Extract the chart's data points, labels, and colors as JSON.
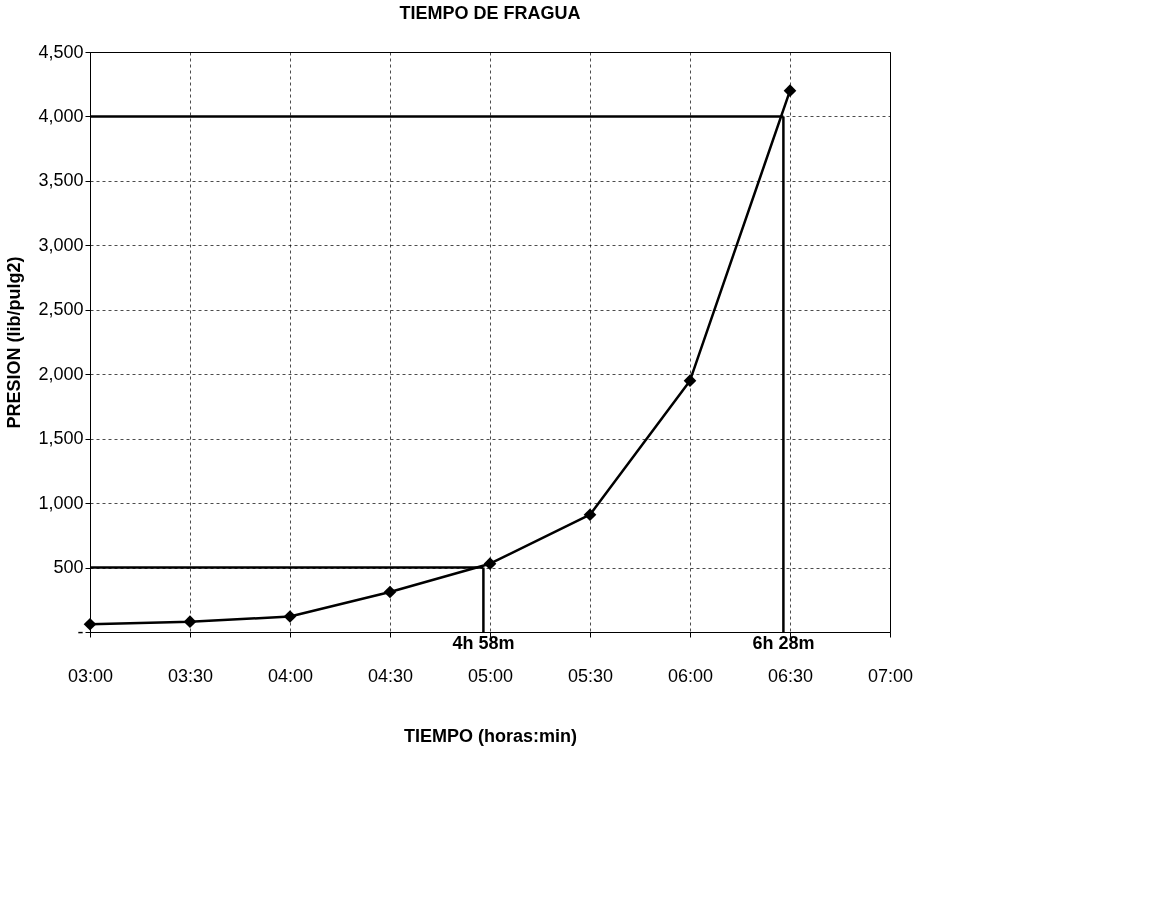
{
  "chart_data": {
    "type": "line",
    "title": "TIEMPO DE FRAGUA",
    "xlabel": "TIEMPO (horas:min)",
    "ylabel": "PRESION (lib/pulg2)",
    "x": [
      3,
      3.5,
      4,
      4.5,
      5,
      5.5,
      6,
      6.5
    ],
    "series": [
      {
        "color": "#000000",
        "values": [
          60,
          80,
          120,
          310,
          530,
          910,
          1950,
          4200
        ]
      }
    ],
    "xlim": [
      3,
      7
    ],
    "xticks": [
      {
        "value": 3,
        "label": "03:00"
      },
      {
        "value": 3.5,
        "label": "03:30"
      },
      {
        "value": 4,
        "label": "04:00"
      },
      {
        "value": 4.5,
        "label": "04:30"
      },
      {
        "value": 5,
        "label": "05:00"
      },
      {
        "value": 5.5,
        "label": "05:30"
      },
      {
        "value": 6,
        "label": "06:00"
      },
      {
        "value": 6.5,
        "label": "06:30"
      },
      {
        "value": 7,
        "label": "07:00"
      }
    ],
    "ylim": [
      0,
      4500
    ],
    "yticks": [
      {
        "value": 0,
        "label": "-"
      },
      {
        "value": 500,
        "label": "500"
      },
      {
        "value": 1000,
        "label": "1,000"
      },
      {
        "value": 1500,
        "label": "1,500"
      },
      {
        "value": 2000,
        "label": "2,000"
      },
      {
        "value": 2500,
        "label": "2,500"
      },
      {
        "value": 3000,
        "label": "3,000"
      },
      {
        "value": 3500,
        "label": "3,500"
      },
      {
        "value": 4000,
        "label": "4,000"
      },
      {
        "value": 4500,
        "label": "4,500"
      }
    ],
    "ref_lines": [
      {
        "axis": "y",
        "value": 500,
        "color": "#000000"
      },
      {
        "axis": "y",
        "value": 4000,
        "color": "#000000"
      },
      {
        "axis": "x",
        "value": 4.967,
        "label": "4h 58m",
        "color": "#000000"
      },
      {
        "axis": "x",
        "value": 6.467,
        "label": "6h 28m",
        "color": "#000000"
      }
    ],
    "grid": true,
    "marker": "diamond",
    "line_style": "solid"
  }
}
